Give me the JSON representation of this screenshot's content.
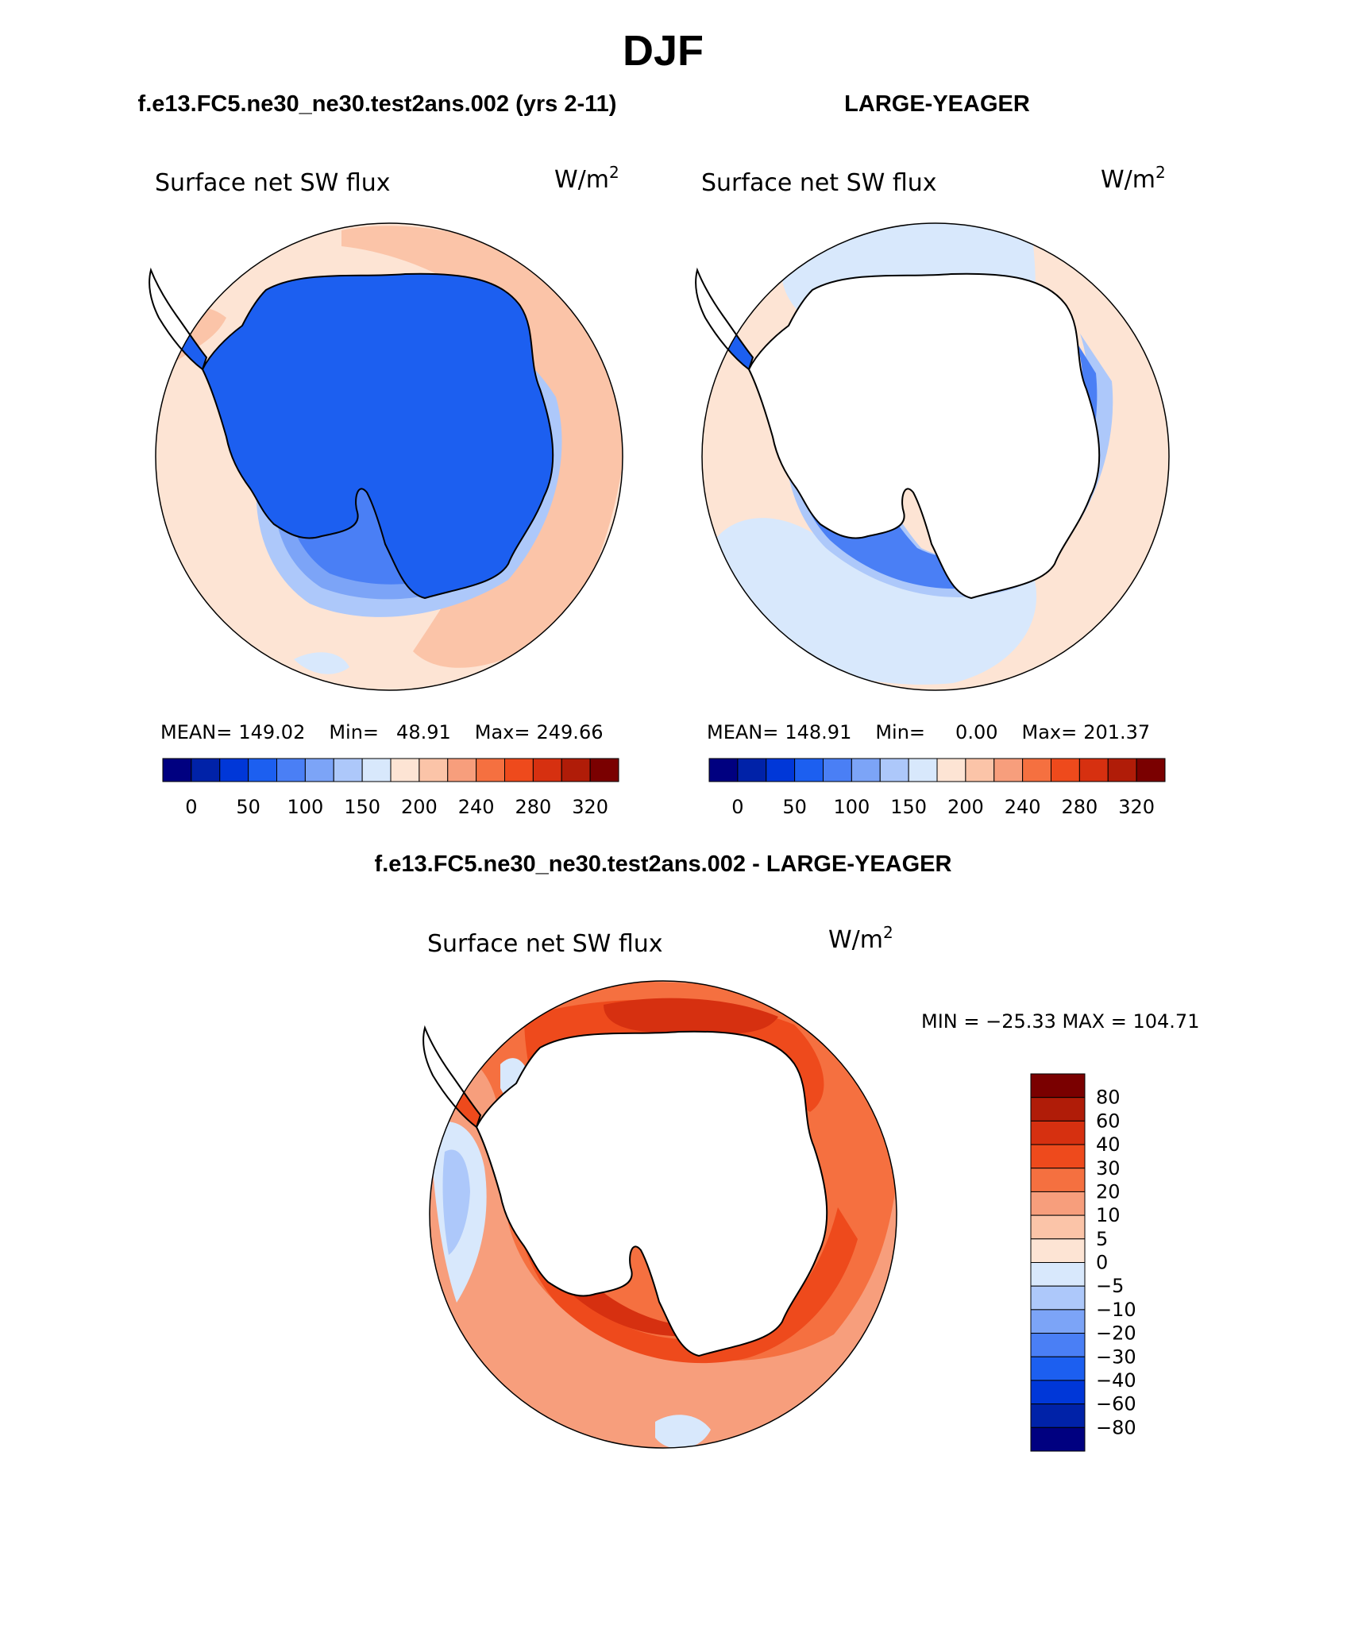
{
  "page": {
    "season": "DJF",
    "panel_left_title": "f.e13.FC5.ne30_ne30.test2ans.002 (yrs 2-11)",
    "panel_right_title": "LARGE-YEAGER",
    "diff_title": "f.e13.FC5.ne30_ne30.test2ans.002 - LARGE-YEAGER"
  },
  "panels": [
    {
      "variable": "Surface net SW flux",
      "units_base": "W/m",
      "units_exp": "2",
      "mean_label": "MEAN=",
      "mean_value": "149.02",
      "min_label": "Min=",
      "min_value": "48.91",
      "max_label": "Max=",
      "max_value": "249.66"
    },
    {
      "variable": "Surface net SW flux",
      "units_base": "W/m",
      "units_exp": "2",
      "mean_label": "MEAN=",
      "mean_value": "148.91",
      "min_label": "Min=",
      "min_value": "0.00",
      "max_label": "Max=",
      "max_value": "201.37"
    }
  ],
  "diff_panel": {
    "variable": "Surface net SW flux",
    "units_base": "W/m",
    "units_exp": "2",
    "minmax_text": "MIN = −25.33 MAX = 104.71"
  },
  "colorbar_abs": {
    "colors": [
      "#000080",
      "#0022a8",
      "#0037d8",
      "#1c5ff0",
      "#4a7ff5",
      "#7ca4f7",
      "#adc8fa",
      "#d8e8fc",
      "#fde4d4",
      "#fbc4a8",
      "#f79e7c",
      "#f57040",
      "#ee4a1c",
      "#d63010",
      "#b01c08",
      "#7a0000"
    ],
    "labels": [
      "0",
      "50",
      "100",
      "150",
      "200",
      "240",
      "280",
      "320"
    ]
  },
  "colorbar_diff": {
    "colors": [
      "#7a0000",
      "#b01c08",
      "#d63010",
      "#ee4a1c",
      "#f57040",
      "#f79e7c",
      "#fbc4a8",
      "#fde4d4",
      "#d8e8fc",
      "#adc8fa",
      "#7ca4f7",
      "#4a7ff5",
      "#1c5ff0",
      "#0037d8",
      "#0022a8",
      "#000080"
    ],
    "labels": [
      "80",
      "60",
      "40",
      "30",
      "20",
      "10",
      "5",
      "0",
      "−5",
      "−10",
      "−20",
      "−30",
      "−40",
      "−60",
      "−80"
    ]
  }
}
